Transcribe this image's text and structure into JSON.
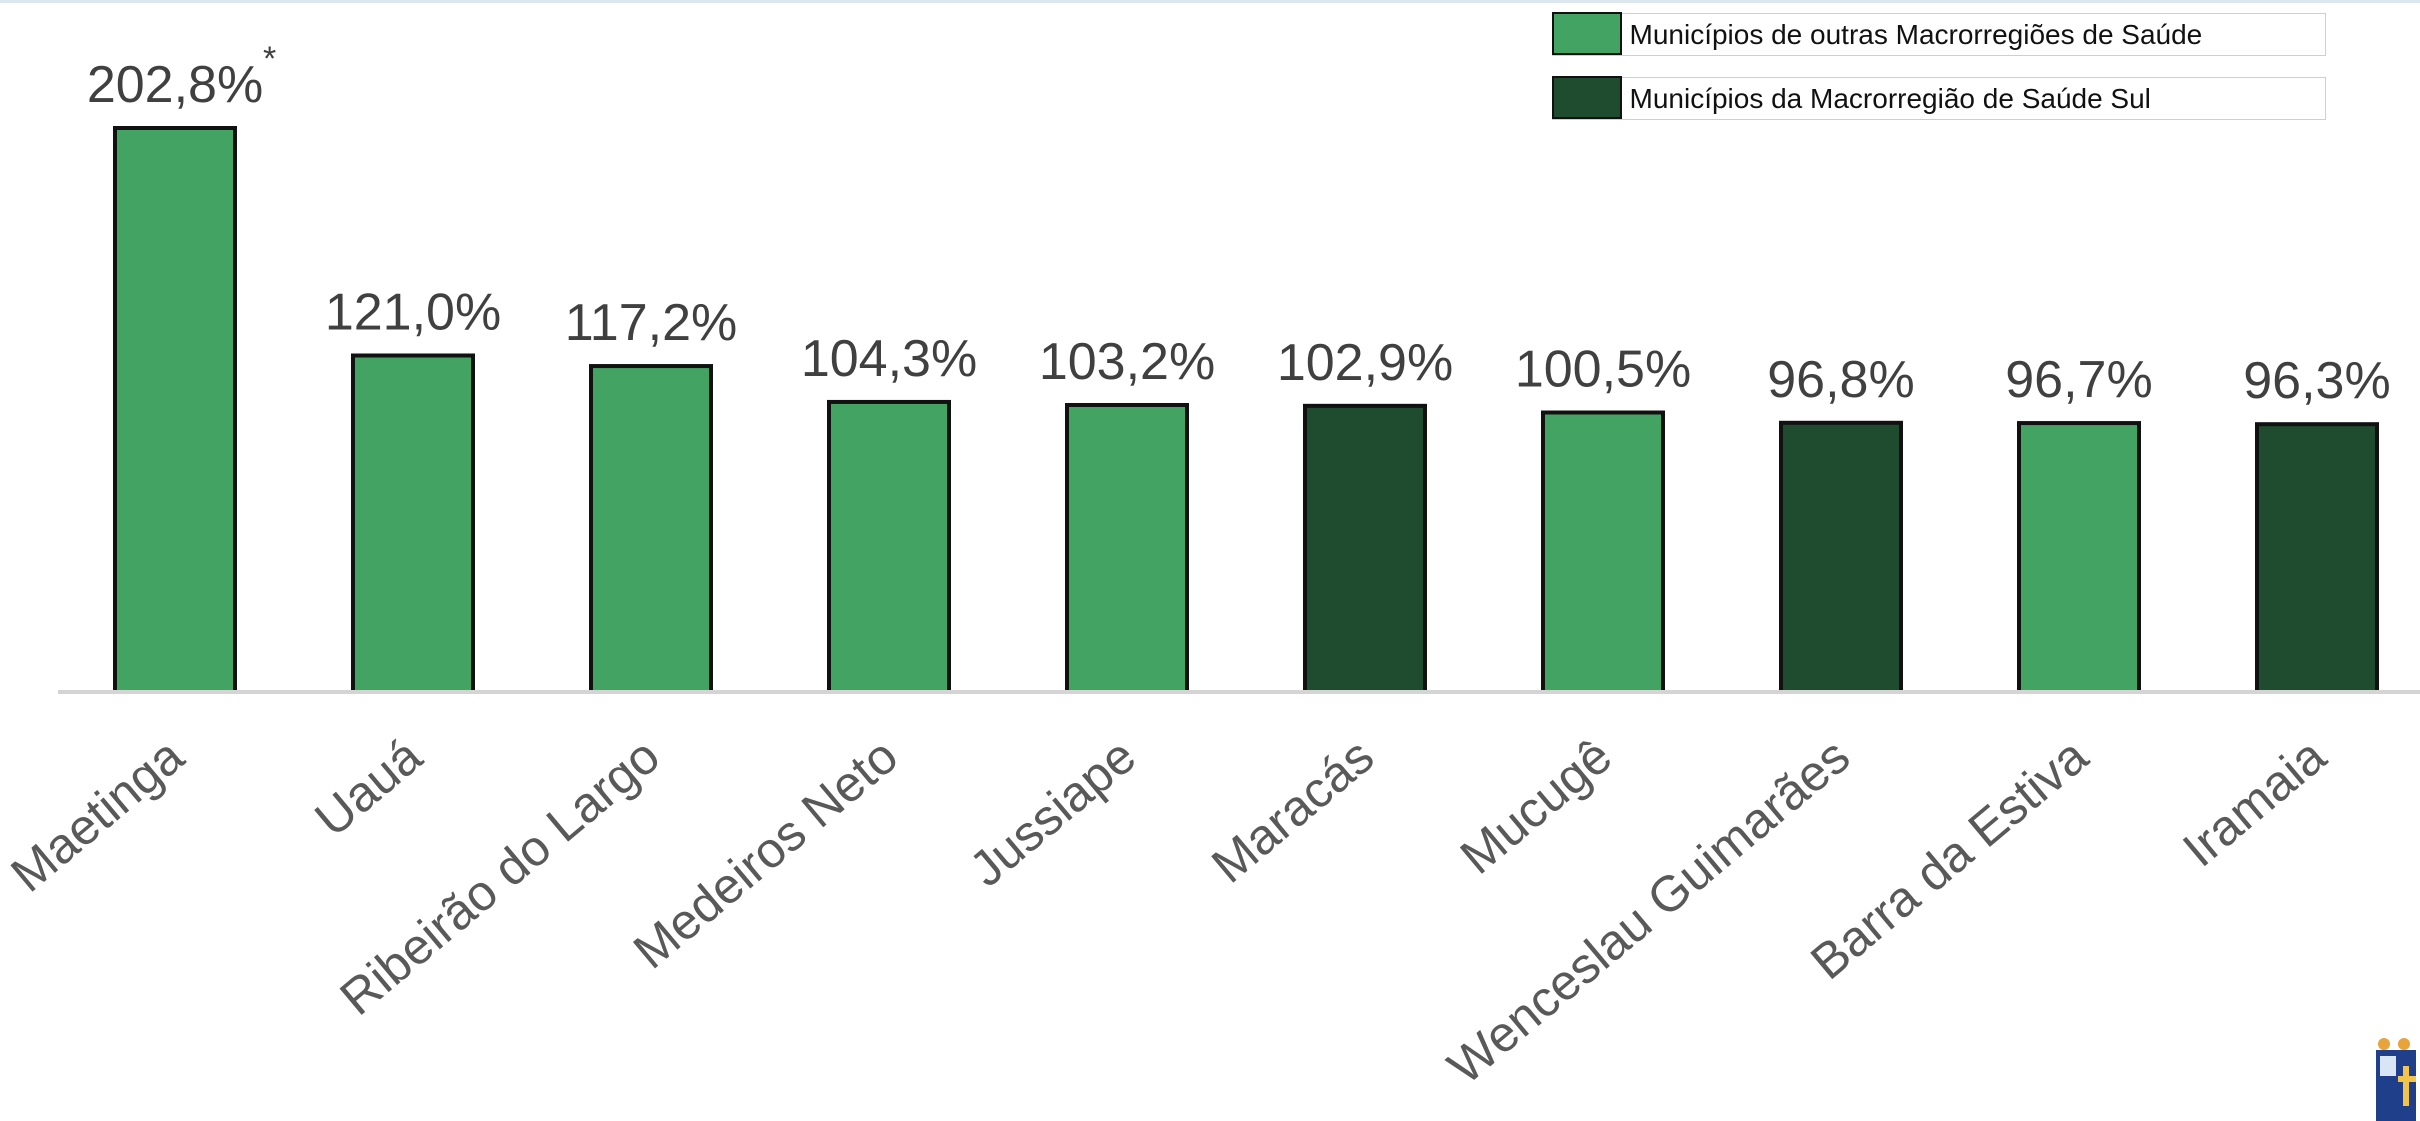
{
  "chart_data": {
    "type": "bar",
    "categories": [
      "Maetinga",
      "Uauá",
      "Ribeirão do Largo",
      "Medeiros Neto",
      "Jussiape",
      "Maracás",
      "Mucugê",
      "Wenceslau Guimarães",
      "Barra da Estiva",
      "Iramaia"
    ],
    "values": [
      202.8,
      121.0,
      117.2,
      104.3,
      103.2,
      102.9,
      100.5,
      96.8,
      96.7,
      96.3
    ],
    "value_labels": [
      "202,8%",
      "121,0%",
      "117,2%",
      "104,3%",
      "103,2%",
      "102,9%",
      "100,5%",
      "96,8%",
      "96,7%",
      "96,3%"
    ],
    "groups": [
      "outras",
      "outras",
      "outras",
      "outras",
      "outras",
      "sul",
      "outras",
      "sul",
      "outras",
      "sul"
    ],
    "annotation": "*",
    "ylim": [
      0,
      210
    ],
    "grid": false,
    "legend_position": "top-right",
    "legend": [
      {
        "key": "outras",
        "label": "Municípios de outras Macrorregiões de Saúde",
        "color": "#43a363"
      },
      {
        "key": "sul",
        "label": "Municípios da Macrorregião de Saúde Sul",
        "color": "#1f4b2e"
      }
    ]
  }
}
